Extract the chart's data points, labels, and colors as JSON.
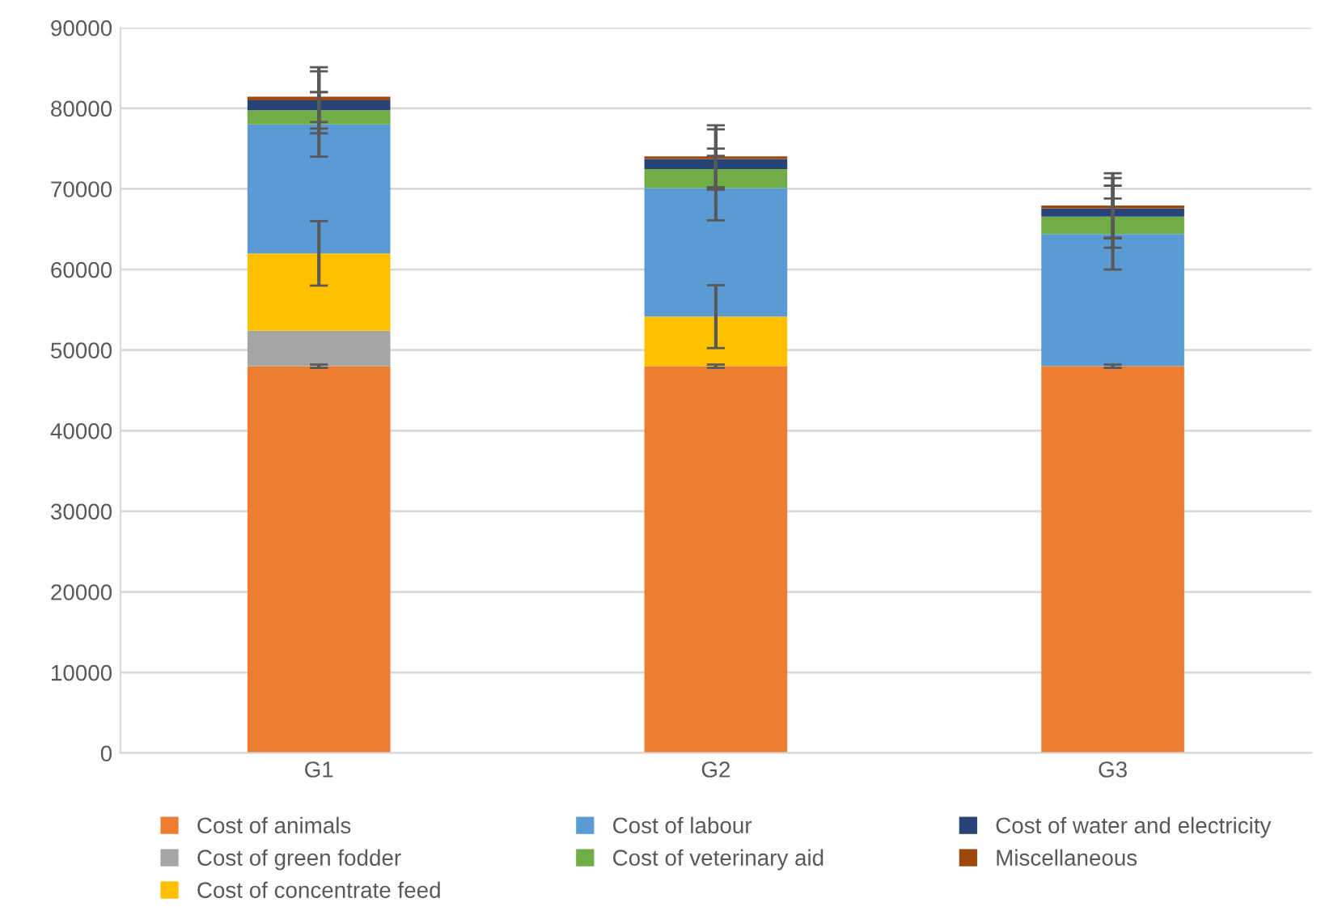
{
  "chart_data": {
    "type": "bar",
    "stacked": true,
    "categories": [
      "G1",
      "G2",
      "G3"
    ],
    "series": [
      {
        "name": "Cost of animals",
        "color": "#ed7d31",
        "values": [
          48000,
          48000,
          48000
        ],
        "errors": [
          200,
          200,
          200
        ]
      },
      {
        "name": "Cost of green fodder",
        "color": "#a5a5a5",
        "values": [
          4400,
          0,
          0
        ],
        "errors": [
          null,
          null,
          null
        ]
      },
      {
        "name": "Cost of concentrate feed",
        "color": "#ffc000",
        "values": [
          9600,
          6150,
          0
        ],
        "errors": [
          4000,
          3900,
          null
        ]
      },
      {
        "name": "Cost of labour",
        "color": "#5b9bd5",
        "values": [
          16000,
          15950,
          16400
        ],
        "errors": [
          4000,
          4000,
          4400
        ]
      },
      {
        "name": "Cost of veterinary aid",
        "color": "#70ad47",
        "values": [
          1750,
          2350,
          2150
        ],
        "errors": [
          2250,
          2550,
          3850
        ]
      },
      {
        "name": "Cost of water and electricity",
        "color": "#264478",
        "values": [
          1250,
          1250,
          1050
        ],
        "errors": [
          4100,
          3700,
          3750
        ]
      },
      {
        "name": "Miscellaneous",
        "color": "#9e480e",
        "values": [
          450,
          350,
          350
        ],
        "errors": [
          3150,
          3850,
          4000
        ]
      }
    ],
    "ylim": [
      0,
      90000
    ],
    "yticks": [
      0,
      10000,
      20000,
      30000,
      40000,
      50000,
      60000,
      70000,
      80000,
      90000
    ],
    "grid": "y",
    "legend": "bottom"
  }
}
